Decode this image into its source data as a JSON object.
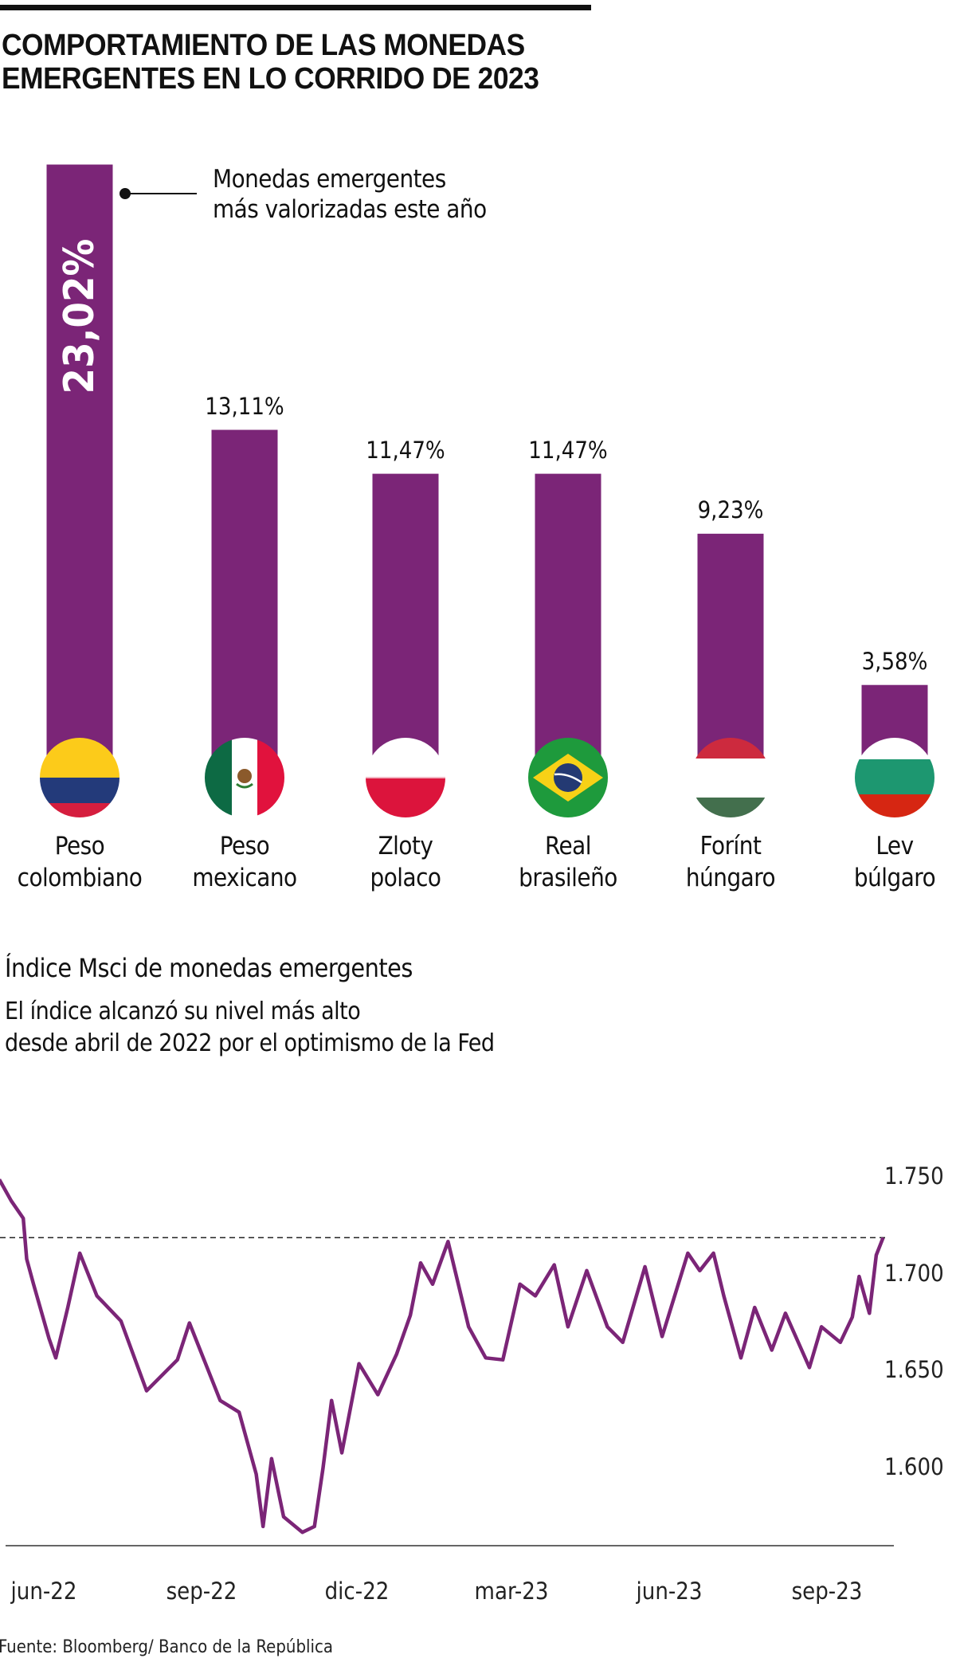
{
  "title": [
    "COMPORTAMIENTO DE LAS MONEDAS",
    "EMERGENTES EN LO CORRIDO DE 2023"
  ],
  "annotation": [
    "Monedas emergentes",
    "más valorizadas este año"
  ],
  "colors": {
    "bar": "#7B2577",
    "line": "#7B2577",
    "text": "#111111"
  },
  "chart_data": [
    {
      "type": "bar",
      "categories": [
        "Peso colombiano",
        "Peso mexicano",
        "Zloty polaco",
        "Real brasileño",
        "Forínt húngaro",
        "Lev búlgaro"
      ],
      "category_lines": [
        [
          "Peso",
          "colombiano"
        ],
        [
          "Peso",
          "mexicano"
        ],
        [
          "Zloty",
          "polaco"
        ],
        [
          "Real",
          "brasileño"
        ],
        [
          "Forínt",
          "húngaro"
        ],
        [
          "Lev",
          "búlgaro"
        ]
      ],
      "values": [
        23.02,
        13.11,
        11.47,
        11.47,
        9.23,
        3.58
      ],
      "labels": [
        "23,02%",
        "13,11%",
        "11,47%",
        "11,47%",
        "9,23%",
        "3,58%"
      ],
      "flags": [
        "colombia-flag-icon",
        "mexico-flag-icon",
        "poland-flag-icon",
        "brazil-flag-icon",
        "hungary-flag-icon",
        "bulgaria-flag-icon"
      ],
      "ylim": [
        0,
        25
      ]
    },
    {
      "type": "line",
      "title": "Índice Msci de monedas emergentes",
      "subtitle": [
        "El índice alcanzó su nivel más alto",
        "desde abril de 2022 por el optimismo de la Fed"
      ],
      "x_tick_labels": [
        "jun-22",
        "sep-22",
        "dic-22",
        "mar-23",
        "jun-23",
        "sep-23"
      ],
      "y_tick_labels": [
        "1.750",
        "1.700",
        "1.650",
        "1.600"
      ],
      "y_ticks": [
        1750,
        1700,
        1650,
        1600
      ],
      "reference_line": 1719,
      "reference_style": "dashed",
      "y_axis_position": "right",
      "series": [
        {
          "points": [
            [
              "2022-05-06",
              1749
            ],
            [
              "2022-05-13",
              1738
            ],
            [
              "2022-05-20",
              1729
            ],
            [
              "2022-05-22",
              1708
            ],
            [
              "2022-05-26",
              1695
            ],
            [
              "2022-06-04",
              1667
            ],
            [
              "2022-06-08",
              1657
            ],
            [
              "2022-06-15",
              1683
            ],
            [
              "2022-06-22",
              1711
            ],
            [
              "2022-07-02",
              1689
            ],
            [
              "2022-07-16",
              1676
            ],
            [
              "2022-07-31",
              1640
            ],
            [
              "2022-08-18",
              1656
            ],
            [
              "2022-08-25",
              1675
            ],
            [
              "2022-09-12",
              1635
            ],
            [
              "2022-09-23",
              1629
            ],
            [
              "2022-10-03",
              1597
            ],
            [
              "2022-10-07",
              1570
            ],
            [
              "2022-10-12",
              1605
            ],
            [
              "2022-10-19",
              1575
            ],
            [
              "2022-10-30",
              1567
            ],
            [
              "2022-11-06",
              1570
            ],
            [
              "2022-11-11",
              1600
            ],
            [
              "2022-11-16",
              1635
            ],
            [
              "2022-11-22",
              1608
            ],
            [
              "2022-12-02",
              1654
            ],
            [
              "2022-12-13",
              1638
            ],
            [
              "2022-12-24",
              1659
            ],
            [
              "2023-01-01",
              1679
            ],
            [
              "2023-01-07",
              1706
            ],
            [
              "2023-01-14",
              1695
            ],
            [
              "2023-01-23",
              1717
            ],
            [
              "2023-02-04",
              1673
            ],
            [
              "2023-02-14",
              1657
            ],
            [
              "2023-02-24",
              1656
            ],
            [
              "2023-03-06",
              1695
            ],
            [
              "2023-03-15",
              1689
            ],
            [
              "2023-03-26",
              1705
            ],
            [
              "2023-04-03",
              1673
            ],
            [
              "2023-04-14",
              1702
            ],
            [
              "2023-04-26",
              1673
            ],
            [
              "2023-05-05",
              1665
            ],
            [
              "2023-05-18",
              1704
            ],
            [
              "2023-05-28",
              1668
            ],
            [
              "2023-06-12",
              1711
            ],
            [
              "2023-06-19",
              1702
            ],
            [
              "2023-06-27",
              1711
            ],
            [
              "2023-07-03",
              1689
            ],
            [
              "2023-07-13",
              1657
            ],
            [
              "2023-07-21",
              1683
            ],
            [
              "2023-07-31",
              1661
            ],
            [
              "2023-08-08",
              1680
            ],
            [
              "2023-08-22",
              1652
            ],
            [
              "2023-08-29",
              1673
            ],
            [
              "2023-09-09",
              1665
            ],
            [
              "2023-09-16",
              1678
            ],
            [
              "2023-09-20",
              1699
            ],
            [
              "2023-09-26",
              1680
            ],
            [
              "2023-09-30",
              1710
            ],
            [
              "2023-10-04",
              1719
            ]
          ]
        }
      ]
    }
  ],
  "source": "Fuente: Bloomberg/ Banco de la República"
}
